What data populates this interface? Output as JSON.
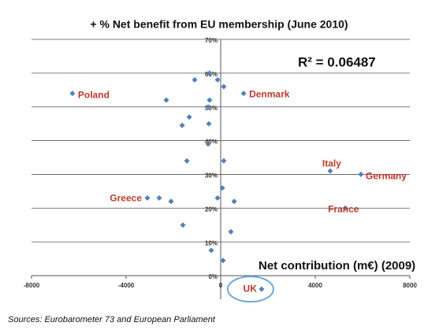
{
  "chart_data": {
    "type": "scatter",
    "title": "+ % Net benefit from EU membership (June 2010)",
    "annotations": [
      "R² = 0.06487",
      "Net contribution (m€) (2009)"
    ],
    "source": "Sources: Eurobarometer 73 and  European Parliament",
    "color": "#4f81bd",
    "label_color": "#c0392b",
    "grid": true,
    "xlim": [
      -8000,
      8000
    ],
    "ylim": [
      -7,
      70
    ],
    "xticks": [
      -8000,
      -4000,
      0,
      4000,
      8000
    ],
    "yticks": [
      {
        "value": 0,
        "label": "0%"
      },
      {
        "value": 10,
        "label": "10%"
      },
      {
        "value": 20,
        "label": "20%"
      },
      {
        "value": 30,
        "label": "30%"
      },
      {
        "value": 40,
        "label": "40%"
      },
      {
        "value": 50,
        "label": "50%"
      },
      {
        "value": 60,
        "label": "60%"
      },
      {
        "value": 70,
        "label": "70%"
      }
    ],
    "x": [
      -6270,
      -1100,
      -470,
      -130,
      130,
      -2300,
      -470,
      970,
      -530,
      -1330,
      -1630,
      -500,
      -530,
      -1430,
      130,
      4630,
      5930,
      70,
      -3100,
      -2600,
      -2100,
      -130,
      570,
      5270,
      -1600,
      430,
      -400,
      100,
      1730
    ],
    "values": [
      54,
      58,
      60,
      58,
      56,
      52,
      52,
      54,
      50,
      47,
      44.5,
      45,
      39,
      34,
      34,
      31,
      30,
      26,
      23,
      23,
      22,
      23,
      22,
      20,
      15,
      13,
      7.5,
      4.5,
      -4
    ],
    "labels": [
      "Poland",
      null,
      null,
      null,
      null,
      null,
      null,
      "Denmark",
      null,
      null,
      null,
      null,
      null,
      null,
      null,
      "Italy",
      "Germany",
      null,
      "Greece",
      null,
      null,
      null,
      null,
      "France",
      null,
      null,
      null,
      null,
      "UK"
    ]
  }
}
